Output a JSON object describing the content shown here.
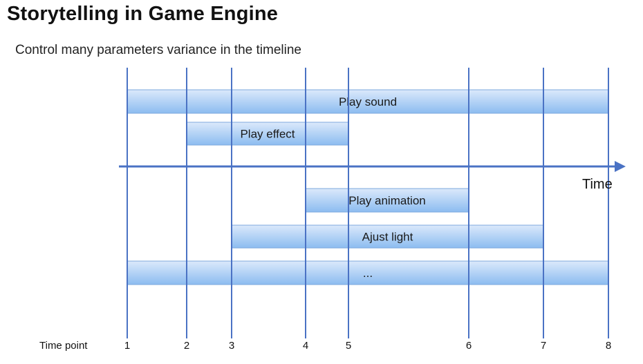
{
  "slide": {
    "title": "Storytelling in Game Engine",
    "subtitle": "Control many parameters variance in the timeline"
  },
  "timeline": {
    "axis_label": "Time",
    "time_point_label": "Time point",
    "time_points": [
      "1",
      "2",
      "3",
      "4",
      "5",
      "6",
      "7",
      "8"
    ],
    "tracks": [
      {
        "label": "Play sound",
        "start": 1,
        "end": 8
      },
      {
        "label": "Play effect",
        "start": 2,
        "end": 5
      },
      {
        "label": "Play animation",
        "start": 4,
        "end": 6
      },
      {
        "label": "Ajust light",
        "start": 3,
        "end": 7
      },
      {
        "label": "...",
        "start": 1,
        "end": 8
      }
    ]
  },
  "colors": {
    "line": "#4a72c4",
    "bar_top": "#dbe9fb",
    "bar_bottom": "#8cbcf0",
    "bar_border": "#7ea9de"
  }
}
